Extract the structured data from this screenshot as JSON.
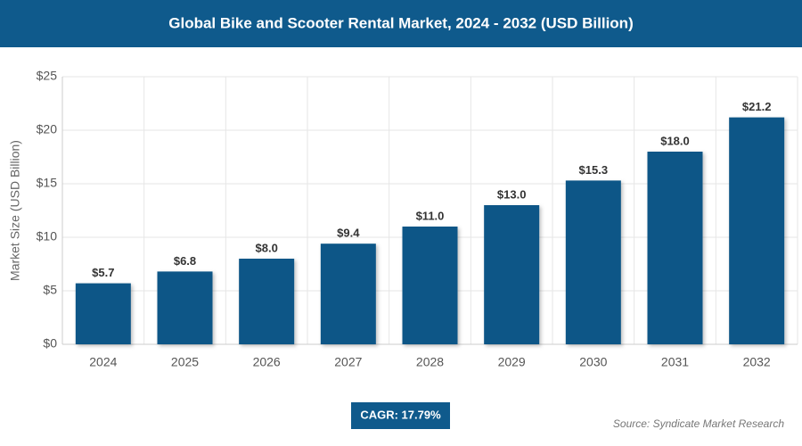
{
  "chart_data": {
    "type": "bar",
    "title": "Global Bike and Scooter Rental Market, 2024 - 2032 (USD Billion)",
    "y_label": "Market Size (USD Billion)",
    "categories": [
      "2024",
      "2025",
      "2026",
      "2027",
      "2028",
      "2029",
      "2030",
      "2031",
      "2032"
    ],
    "values": [
      5.7,
      6.8,
      8.0,
      9.4,
      11.0,
      13.0,
      15.3,
      18.0,
      21.2
    ],
    "value_labels": [
      "$5.7",
      "$6.8",
      "$8.0",
      "$9.4",
      "$11.0",
      "$13.0",
      "$15.3",
      "$18.0",
      "$21.2"
    ],
    "color": "#0b5787",
    "ylim": [
      0,
      25
    ],
    "yticks": [
      {
        "value": 0,
        "label": "$0"
      },
      {
        "value": 5,
        "label": "$5"
      },
      {
        "value": 10,
        "label": "$10"
      },
      {
        "value": 15,
        "label": "$15"
      },
      {
        "value": 20,
        "label": "$20"
      },
      {
        "value": 25,
        "label": "$25"
      }
    ],
    "grid": true,
    "cagr": "CAGR: 17.79%",
    "source": "Source: Syndicate Market Research"
  }
}
